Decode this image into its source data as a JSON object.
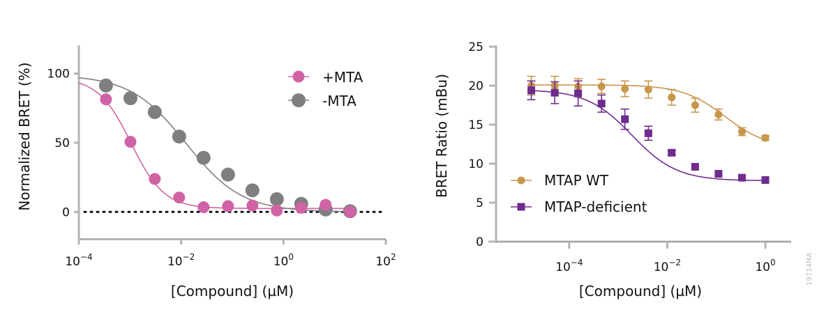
{
  "chart_data": [
    {
      "type": "line",
      "xlabel": "[Compound] (µM)",
      "ylabel": "Normalized BRET (%)",
      "x_scale": "log",
      "xlim": [
        0.0001,
        100
      ],
      "ylim": [
        0,
        120
      ],
      "x_ticks": [
        "10^-4",
        "10^-2",
        "10^0",
        "10^2"
      ],
      "y_ticks": [
        "0",
        "50",
        "100"
      ],
      "grid": false,
      "reference_line": {
        "y": 0,
        "style": "dotted"
      },
      "legend_position": "top-right",
      "x": [
        0.000339,
        0.00102,
        0.00305,
        0.00914,
        0.0274,
        0.0823,
        0.247,
        0.741,
        2.22,
        6.67,
        20
      ],
      "series": [
        {
          "name": "+MTA",
          "color": "#d063a5",
          "marker": "circle",
          "values": [
            81.4,
            50.7,
            23.8,
            10.4,
            3.4,
            4.2,
            4.6,
            1.0,
            3.0,
            5.1,
            0
          ]
        },
        {
          "name": "-MTA",
          "color": "#7f7f7f",
          "marker": "circle",
          "values": [
            91.4,
            82.2,
            72.2,
            54.5,
            39.1,
            27.0,
            15.6,
            9.2,
            5.8,
            1.8,
            0.5
          ]
        }
      ]
    },
    {
      "type": "line",
      "xlabel": "[Compound] (µM)",
      "ylabel": "BRET Ratio (mBu)",
      "x_scale": "log",
      "ylim": [
        0,
        25
      ],
      "x_ticks": [
        "10^-4",
        "10^-2",
        "10^0"
      ],
      "y_ticks": [
        "0",
        "5",
        "10",
        "15",
        "20",
        "25"
      ],
      "grid": false,
      "legend_position": "bottom-left",
      "x": [
        1.69e-05,
        5.08e-05,
        0.000152,
        0.000457,
        0.00137,
        0.00412,
        0.0123,
        0.037,
        0.111,
        0.333,
        1
      ],
      "series": [
        {
          "name": "MTAP WT",
          "color": "#c8964b",
          "marker": "circle",
          "values": [
            20.0,
            20.0,
            19.9,
            19.9,
            19.6,
            19.5,
            18.5,
            17.5,
            16.3,
            14.1,
            13.3
          ],
          "errors": [
            1.2,
            1.2,
            1.0,
            0.9,
            1.0,
            1.1,
            1.0,
            0.9,
            0.7,
            0.5,
            0.3
          ]
        },
        {
          "name": "MTAP-deficient",
          "color": "#6e2c8e",
          "marker": "square",
          "values": [
            19.4,
            19.1,
            19.0,
            17.7,
            15.7,
            13.9,
            11.4,
            9.6,
            8.7,
            8.2,
            7.9
          ],
          "errors": [
            1.2,
            1.4,
            1.6,
            1.1,
            1.3,
            0.9,
            0.3,
            0.2,
            0.2,
            0.2,
            0.2
          ]
        }
      ]
    }
  ],
  "watermark": "19714MA"
}
